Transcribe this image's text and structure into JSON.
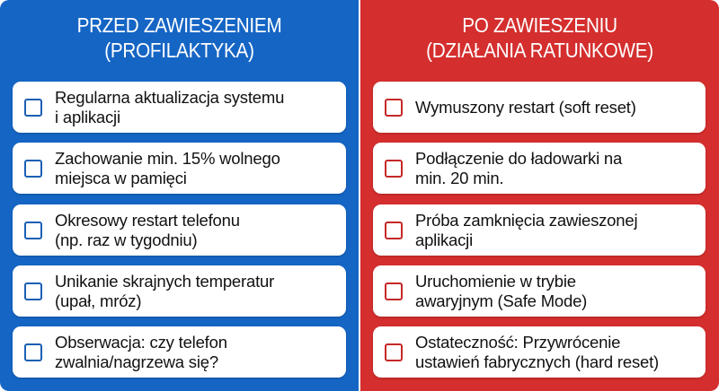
{
  "colors": {
    "left_panel": "#1565c4",
    "right_panel": "#d42e2e"
  },
  "left": {
    "title_line1": "PRZED ZAWIESZENIEM",
    "title_line2": "(PROFILAKTYKA)",
    "items": [
      {
        "line1": "Regularna aktualizacja systemu",
        "line2": "i aplikacji"
      },
      {
        "line1": "Zachowanie min. 15% wolnego",
        "line2": "miejsca w pamięci"
      },
      {
        "line1": "Okresowy restart telefonu",
        "line2": "(np. raz w tygodniu)"
      },
      {
        "line1": "Unikanie skrajnych temperatur",
        "line2": "(upał, mróz)"
      },
      {
        "line1": "Obserwacja: czy telefon",
        "line2": "zwalnia/nagrzewa się?"
      }
    ]
  },
  "right": {
    "title_line1": "PO ZAWIESZENIU",
    "title_line2": "(DZIAŁANIA RATUNKOWE)",
    "items": [
      {
        "line1": "Wymuszony restart (soft reset)",
        "line2": ""
      },
      {
        "line1": "Podłączenie do ładowarki na",
        "line2": "min. 20 min."
      },
      {
        "line1": "Próba zamknięcia zawieszonej",
        "line2": "aplikacji"
      },
      {
        "line1": "Uruchomienie w trybie",
        "line2": "awaryjnym (Safe Mode)"
      },
      {
        "line1": "Ostateczność: Przywrócenie",
        "line2": "ustawień fabrycznych (hard reset)"
      }
    ]
  }
}
